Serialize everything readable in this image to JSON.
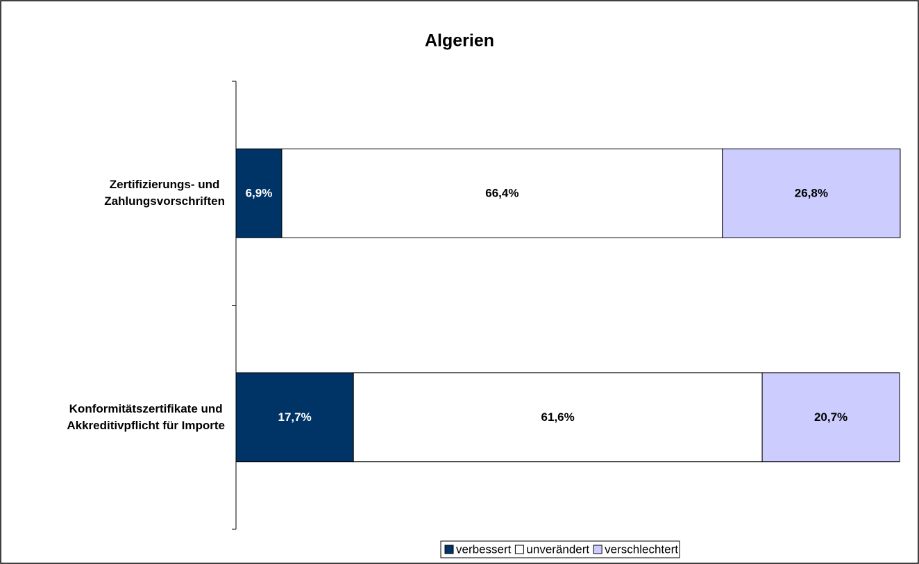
{
  "chart_data": {
    "type": "stacked-bar-horizontal",
    "title": "Algerien",
    "categories": [
      "Zertifizierungs- und\nZahlungsvorschriften",
      "Konformitätszertifikate und\nAkkreditivpflicht für Importe"
    ],
    "series": [
      {
        "name": "verbessert",
        "color": "#003366",
        "values": [
          6.9,
          17.7
        ],
        "value_labels": [
          "6,9%",
          "17,7%"
        ]
      },
      {
        "name": "unverändert",
        "color": "#ffffff",
        "values": [
          66.4,
          61.6
        ],
        "value_labels": [
          "66,4%",
          "61,6%"
        ]
      },
      {
        "name": "verschlechtert",
        "color": "#ccccff",
        "values": [
          26.8,
          20.7
        ],
        "value_labels": [
          "26,8%",
          "20,7%"
        ]
      }
    ],
    "xlim": [
      0,
      100
    ],
    "legend": "bottom"
  }
}
